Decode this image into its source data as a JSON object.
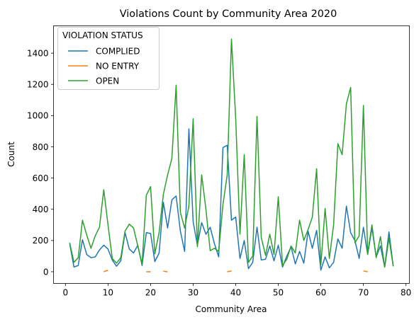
{
  "chart_data": {
    "type": "line",
    "title": "Violations Count by Community Area 2020",
    "xlabel": "Community Area",
    "ylabel": "Count",
    "xlim": [
      -2.8,
      80.8
    ],
    "ylim": [
      -75,
      1575
    ],
    "xticks": [
      0,
      10,
      20,
      30,
      40,
      50,
      60,
      70,
      80
    ],
    "yticks": [
      0,
      200,
      400,
      600,
      800,
      1000,
      1200,
      1400
    ],
    "grid": false,
    "legend": {
      "title": "VIOLATION STATUS",
      "placement": "top-left"
    },
    "series": [
      {
        "name": "COMPLIED",
        "color": "#1f77b4",
        "points": [
          [
            1,
            180
          ],
          [
            2,
            30
          ],
          [
            3,
            40
          ],
          [
            4,
            205
          ],
          [
            5,
            110
          ],
          [
            6,
            90
          ],
          [
            7,
            95
          ],
          [
            8,
            140
          ],
          [
            9,
            170
          ],
          [
            10,
            145
          ],
          [
            11,
            75
          ],
          [
            12,
            35
          ],
          [
            13,
            70
          ],
          [
            14,
            250
          ],
          [
            15,
            145
          ],
          [
            16,
            120
          ],
          [
            17,
            170
          ],
          [
            18,
            40
          ],
          [
            19,
            250
          ],
          [
            20,
            245
          ],
          [
            21,
            65
          ],
          [
            22,
            120
          ],
          [
            23,
            445
          ],
          [
            24,
            280
          ],
          [
            25,
            460
          ],
          [
            26,
            485
          ],
          [
            27,
            260
          ],
          [
            28,
            130
          ],
          [
            29,
            915
          ],
          [
            30,
            320
          ],
          [
            31,
            170
          ],
          [
            32,
            315
          ],
          [
            33,
            240
          ],
          [
            34,
            285
          ],
          [
            35,
            180
          ],
          [
            36,
            95
          ],
          [
            37,
            795
          ],
          [
            38,
            810
          ],
          [
            39,
            330
          ],
          [
            40,
            350
          ],
          [
            41,
            85
          ],
          [
            42,
            200
          ],
          [
            43,
            20
          ],
          [
            44,
            60
          ],
          [
            45,
            285
          ],
          [
            46,
            75
          ],
          [
            47,
            80
          ],
          [
            48,
            165
          ],
          [
            49,
            70
          ],
          [
            50,
            170
          ],
          [
            51,
            30
          ],
          [
            52,
            100
          ],
          [
            53,
            160
          ],
          [
            54,
            50
          ],
          [
            55,
            130
          ],
          [
            56,
            55
          ],
          [
            57,
            260
          ],
          [
            58,
            150
          ],
          [
            59,
            265
          ],
          [
            60,
            10
          ],
          [
            61,
            95
          ],
          [
            62,
            25
          ],
          [
            63,
            60
          ],
          [
            64,
            210
          ],
          [
            65,
            150
          ],
          [
            66,
            420
          ],
          [
            67,
            250
          ],
          [
            68,
            200
          ],
          [
            69,
            85
          ],
          [
            70,
            285
          ],
          [
            71,
            110
          ],
          [
            72,
            280
          ],
          [
            73,
            95
          ],
          [
            74,
            165
          ],
          [
            75,
            30
          ],
          [
            76,
            255
          ],
          [
            77,
            35
          ]
        ]
      },
      {
        "name": "NO ENTRY",
        "color": "#ff7f0e",
        "points": [
          [
            1,
            null
          ],
          [
            2,
            null
          ],
          [
            3,
            null
          ],
          [
            4,
            null
          ],
          [
            5,
            null
          ],
          [
            6,
            null
          ],
          [
            7,
            null
          ],
          [
            8,
            null
          ],
          [
            9,
            0
          ],
          [
            10,
            10
          ],
          [
            11,
            null
          ],
          [
            12,
            null
          ],
          [
            13,
            null
          ],
          [
            14,
            null
          ],
          [
            15,
            null
          ],
          [
            16,
            null
          ],
          [
            17,
            null
          ],
          [
            18,
            null
          ],
          [
            19,
            0
          ],
          [
            20,
            0
          ],
          [
            21,
            null
          ],
          [
            22,
            null
          ],
          [
            23,
            3
          ],
          [
            24,
            0
          ],
          [
            25,
            null
          ],
          [
            26,
            null
          ],
          [
            27,
            null
          ],
          [
            28,
            null
          ],
          [
            29,
            null
          ],
          [
            30,
            null
          ],
          [
            31,
            null
          ],
          [
            32,
            null
          ],
          [
            33,
            null
          ],
          [
            34,
            null
          ],
          [
            35,
            null
          ],
          [
            36,
            null
          ],
          [
            37,
            null
          ],
          [
            38,
            0
          ],
          [
            39,
            5
          ],
          [
            40,
            null
          ],
          [
            41,
            null
          ],
          [
            42,
            null
          ],
          [
            43,
            null
          ],
          [
            44,
            null
          ],
          [
            45,
            null
          ],
          [
            46,
            null
          ],
          [
            47,
            null
          ],
          [
            48,
            null
          ],
          [
            49,
            null
          ],
          [
            50,
            null
          ],
          [
            51,
            null
          ],
          [
            52,
            null
          ],
          [
            53,
            null
          ],
          [
            54,
            null
          ],
          [
            55,
            null
          ],
          [
            56,
            null
          ],
          [
            57,
            null
          ],
          [
            58,
            null
          ],
          [
            59,
            null
          ],
          [
            60,
            null
          ],
          [
            61,
            null
          ],
          [
            62,
            null
          ],
          [
            63,
            null
          ],
          [
            64,
            null
          ],
          [
            65,
            null
          ],
          [
            66,
            null
          ],
          [
            67,
            null
          ],
          [
            68,
            null
          ],
          [
            69,
            null
          ],
          [
            70,
            5
          ],
          [
            71,
            0
          ],
          [
            72,
            null
          ],
          [
            73,
            null
          ],
          [
            74,
            null
          ],
          [
            75,
            null
          ],
          [
            76,
            null
          ],
          [
            77,
            null
          ]
        ]
      },
      {
        "name": "OPEN",
        "color": "#2ca02c",
        "points": [
          [
            1,
            185
          ],
          [
            2,
            60
          ],
          [
            3,
            90
          ],
          [
            4,
            330
          ],
          [
            5,
            235
          ],
          [
            6,
            150
          ],
          [
            7,
            230
          ],
          [
            8,
            285
          ],
          [
            9,
            525
          ],
          [
            10,
            300
          ],
          [
            11,
            85
          ],
          [
            12,
            55
          ],
          [
            13,
            90
          ],
          [
            14,
            260
          ],
          [
            15,
            305
          ],
          [
            16,
            280
          ],
          [
            17,
            165
          ],
          [
            18,
            50
          ],
          [
            19,
            490
          ],
          [
            20,
            545
          ],
          [
            21,
            115
          ],
          [
            22,
            250
          ],
          [
            23,
            495
          ],
          [
            24,
            620
          ],
          [
            25,
            725
          ],
          [
            26,
            1195
          ],
          [
            27,
            380
          ],
          [
            28,
            280
          ],
          [
            29,
            420
          ],
          [
            30,
            980
          ],
          [
            31,
            160
          ],
          [
            32,
            620
          ],
          [
            33,
            400
          ],
          [
            34,
            135
          ],
          [
            35,
            150
          ],
          [
            36,
            130
          ],
          [
            37,
            430
          ],
          [
            38,
            620
          ],
          [
            39,
            1490
          ],
          [
            40,
            980
          ],
          [
            41,
            240
          ],
          [
            42,
            750
          ],
          [
            43,
            60
          ],
          [
            44,
            100
          ],
          [
            45,
            995
          ],
          [
            46,
            220
          ],
          [
            47,
            105
          ],
          [
            48,
            240
          ],
          [
            49,
            110
          ],
          [
            50,
            480
          ],
          [
            51,
            40
          ],
          [
            52,
            80
          ],
          [
            53,
            165
          ],
          [
            54,
            120
          ],
          [
            55,
            330
          ],
          [
            56,
            200
          ],
          [
            57,
            270
          ],
          [
            58,
            350
          ],
          [
            59,
            660
          ],
          [
            60,
            45
          ],
          [
            61,
            405
          ],
          [
            62,
            85
          ],
          [
            63,
            300
          ],
          [
            64,
            820
          ],
          [
            65,
            750
          ],
          [
            66,
            1075
          ],
          [
            67,
            1180
          ],
          [
            68,
            185
          ],
          [
            69,
            230
          ],
          [
            70,
            1065
          ],
          [
            71,
            115
          ],
          [
            72,
            300
          ],
          [
            73,
            90
          ],
          [
            74,
            225
          ],
          [
            75,
            30
          ],
          [
            76,
            215
          ],
          [
            77,
            35
          ]
        ]
      }
    ]
  }
}
